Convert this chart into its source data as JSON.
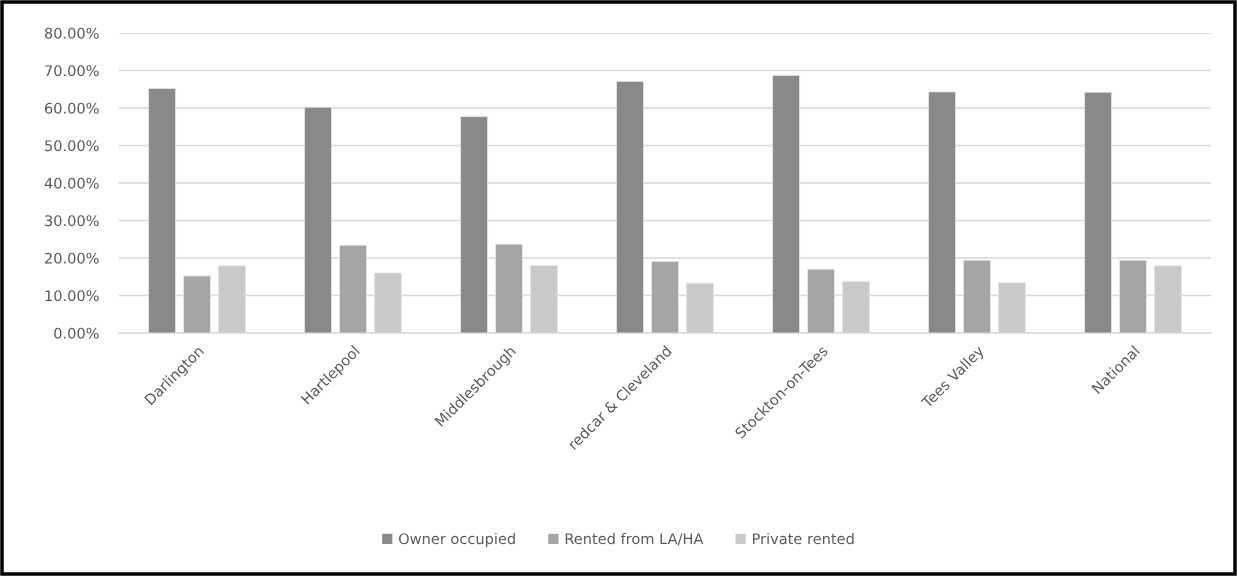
{
  "chart_data": {
    "type": "bar",
    "categories": [
      "Darlington",
      "Hartlepool",
      "Middlesbrough",
      "redcar & Cleveland",
      "Stockton-on-Tees",
      "Tees Valley",
      "National"
    ],
    "series": [
      {
        "name": "Owner occupied",
        "color": "#898989",
        "values": [
          65.2,
          60.2,
          57.7,
          67.1,
          68.7,
          64.3,
          64.2
        ]
      },
      {
        "name": "Rented from LA/HA",
        "color": "#a5a5a5",
        "values": [
          15.2,
          23.4,
          23.7,
          19.1,
          17.0,
          19.4,
          19.4
        ]
      },
      {
        "name": "Private rented",
        "color": "#c9c9c9",
        "values": [
          17.9,
          16.0,
          18.0,
          13.3,
          13.8,
          13.4,
          17.9
        ]
      }
    ],
    "ylim": [
      0,
      80
    ],
    "yticks": [
      {
        "value": 0,
        "label": "0.00%"
      },
      {
        "value": 10,
        "label": "10.00%"
      },
      {
        "value": 20,
        "label": "20.00%"
      },
      {
        "value": 30,
        "label": "30.00%"
      },
      {
        "value": 40,
        "label": "40.00%"
      },
      {
        "value": 50,
        "label": "50.00%"
      },
      {
        "value": 60,
        "label": "60.00%"
      },
      {
        "value": 70,
        "label": "70.00%"
      },
      {
        "value": 80,
        "label": "80.00%"
      }
    ],
    "grid": "y",
    "legend": "bottom"
  }
}
